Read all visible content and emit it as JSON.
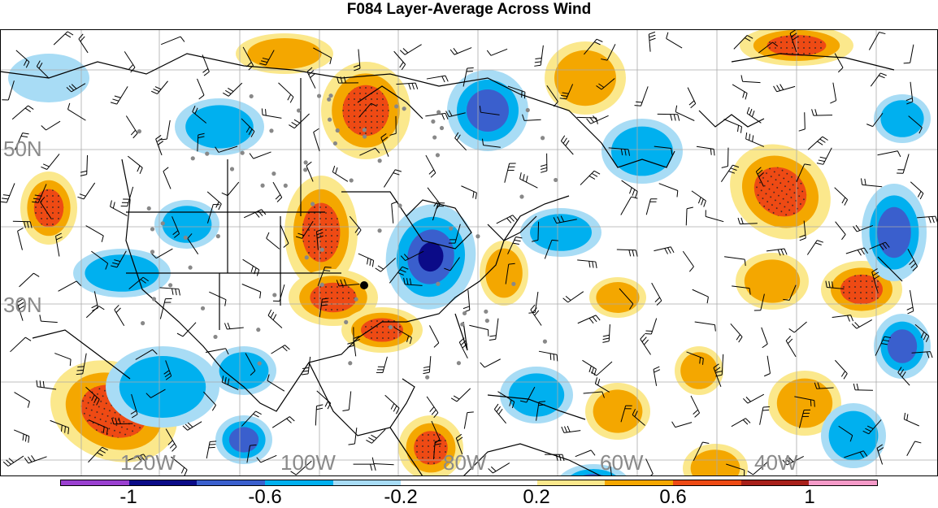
{
  "title": "F084 Layer-Average Across Wind",
  "longitude_labels": [
    "120W",
    "100W",
    "80W",
    "60W",
    "40W"
  ],
  "latitude_labels": [
    "50N",
    "30N"
  ],
  "colorbar": {
    "colors": [
      "#9a3fd0",
      "#0b0b88",
      "#3a5fcd",
      "#00b0ef",
      "#a8dcf5",
      "#ffffff",
      "#ffffff",
      "#fbe88c",
      "#f4a700",
      "#ee4a14",
      "#a8201a",
      "#f49ac8"
    ],
    "labels": [
      "-1",
      "-0.6",
      "-0.2",
      "0.2",
      "0.6",
      "1"
    ]
  },
  "field_colors": {
    "neg_strong": "#0b0b88",
    "neg_mid": "#3a5fcd",
    "neg_light": "#00b0ef",
    "neg_faint": "#a8dcf5",
    "pos_faint": "#fbe88c",
    "pos_light": "#f4a700",
    "pos_mid": "#ee4a14",
    "pos_strong": "#a8201a"
  }
}
